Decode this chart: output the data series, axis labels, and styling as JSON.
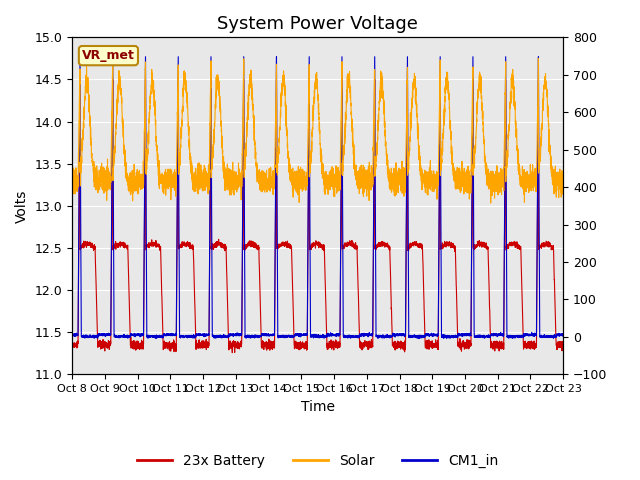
{
  "title": "System Power Voltage",
  "ylabel_left": "Volts",
  "xlabel": "Time",
  "ylim_left": [
    11.0,
    15.0
  ],
  "ylim_right": [
    -100,
    800
  ],
  "yticks_left": [
    11.0,
    11.5,
    12.0,
    12.5,
    13.0,
    13.5,
    14.0,
    14.5,
    15.0
  ],
  "yticks_right": [
    -100,
    0,
    100,
    200,
    300,
    400,
    500,
    600,
    700,
    800
  ],
  "xtick_labels": [
    "Oct 8",
    "Oct 9",
    "Oct 10",
    "Oct 11",
    "Oct 12",
    "Oct 13",
    "Oct 14",
    "Oct 15",
    "Oct 16",
    "Oct 17",
    "Oct 18",
    "Oct 19",
    "Oct 20",
    "Oct 21",
    "Oct 22",
    "Oct 23"
  ],
  "n_days": 15,
  "background_color": "#e8e8e8",
  "line_colors": {
    "battery": "#cc0000",
    "solar": "#ffa500",
    "cm1": "#0000cc"
  },
  "legend_labels": [
    "23x Battery",
    "Solar",
    "CM1_in"
  ],
  "vr_met_label": "VR_met",
  "title_fontsize": 13,
  "label_fontsize": 10,
  "tick_fontsize": 9
}
